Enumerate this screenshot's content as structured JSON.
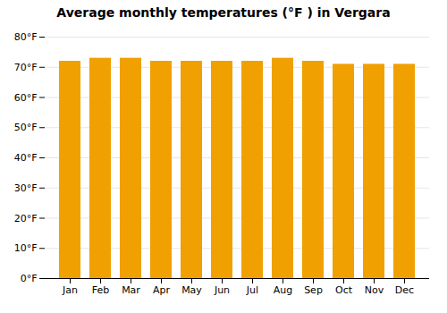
{
  "chart_data": {
    "type": "bar",
    "title": "Average monthly temperatures (°F ) in Vergara",
    "categories": [
      "Jan",
      "Feb",
      "Mar",
      "Apr",
      "May",
      "Jun",
      "Jul",
      "Aug",
      "Sep",
      "Oct",
      "Nov",
      "Dec"
    ],
    "values": [
      72,
      73,
      73,
      72,
      72,
      72,
      72,
      73,
      72,
      71,
      71,
      71
    ],
    "color": "#F0A000",
    "ylim": [
      0,
      80
    ],
    "yticks": [
      {
        "value": 0,
        "label": "0°F"
      },
      {
        "value": 10,
        "label": "10°F"
      },
      {
        "value": 20,
        "label": "20°F"
      },
      {
        "value": 30,
        "label": "30°F"
      },
      {
        "value": 40,
        "label": "40°F"
      },
      {
        "value": 50,
        "label": "50°F"
      },
      {
        "value": 60,
        "label": "60°F"
      },
      {
        "value": 70,
        "label": "70°F"
      },
      {
        "value": 80,
        "label": "80°F"
      }
    ],
    "grid": true
  }
}
